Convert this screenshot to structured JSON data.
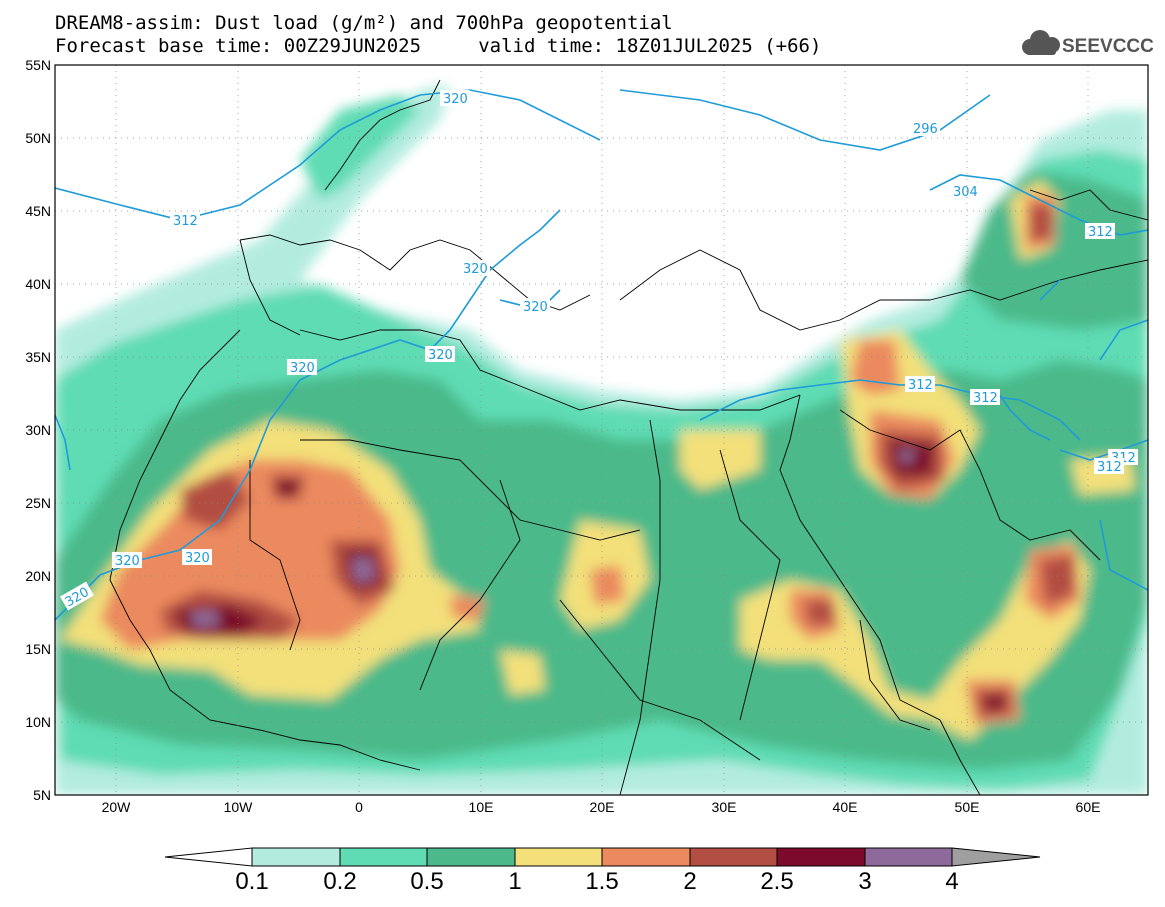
{
  "title_line1": "DREAM8-assim: Dust load (g/m²) and 700hPa geopotential",
  "title_line2": "Forecast base time: 00Z29JUN2025     valid time: 18Z01JUL2025 (+66)",
  "logo_text": "SEEVCCC",
  "lat_ticks": [
    "55N",
    "50N",
    "45N",
    "40N",
    "35N",
    "30N",
    "25N",
    "20N",
    "15N",
    "10N",
    "5N"
  ],
  "lon_ticks": [
    "20W",
    "10W",
    "0",
    "10E",
    "20E",
    "30E",
    "40E",
    "50E",
    "60E"
  ],
  "contour_labels": [
    "320",
    "312",
    "320",
    "320",
    "320",
    "320",
    "320",
    "320",
    "296",
    "304",
    "312",
    "312",
    "312",
    "312",
    "312",
    "320"
  ],
  "colorbar": {
    "labels": [
      "0.1",
      "0.2",
      "0.5",
      "1",
      "1.5",
      "2",
      "2.5",
      "3",
      "4"
    ],
    "colors": [
      "#b3ecdf",
      "#5fdcb4",
      "#4cb98a",
      "#f3e07a",
      "#eb8a5f",
      "#b24e42",
      "#7c0a2a",
      "#8e6a9a",
      "#9f9f9f"
    ]
  },
  "colors": {
    "c01": "#b3ecdf",
    "c02": "#5fdcb4",
    "c05": "#4cb98a",
    "c1": "#f3e07a",
    "c15": "#eb8a5f",
    "c2": "#b24e42",
    "c25": "#7c0a2a",
    "c3": "#8e6a9a",
    "contour": "#1e9bd8"
  }
}
